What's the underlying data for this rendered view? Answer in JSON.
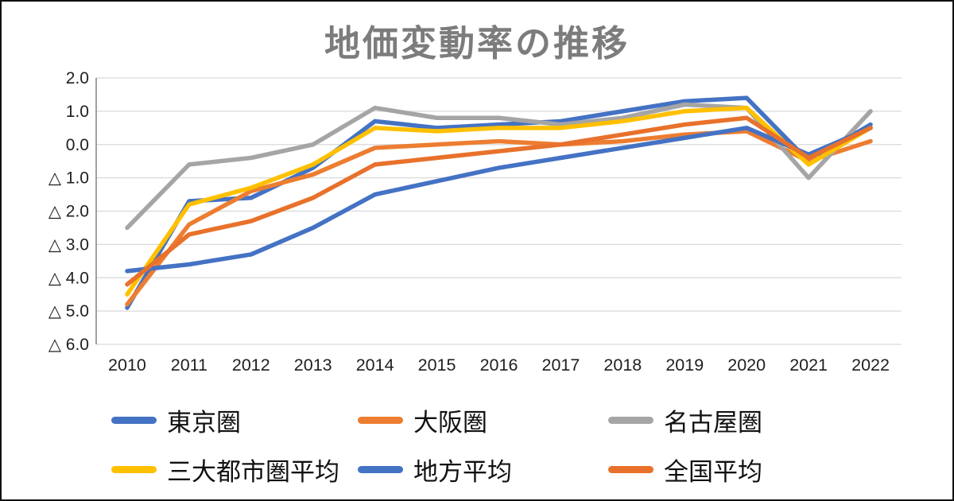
{
  "chart_data": {
    "type": "line",
    "title": "地価変動率の推移",
    "categories": [
      "2010",
      "2011",
      "2012",
      "2013",
      "2014",
      "2015",
      "2016",
      "2017",
      "2018",
      "2019",
      "2020",
      "2021",
      "2022"
    ],
    "series": [
      {
        "name": "東京圏",
        "color": "#4472C4",
        "values": [
          -4.9,
          -1.7,
          -1.6,
          -0.7,
          0.7,
          0.5,
          0.6,
          0.7,
          1.0,
          1.3,
          1.4,
          -0.5,
          0.6
        ]
      },
      {
        "name": "大阪圏",
        "color": "#ED7D31",
        "values": [
          -4.8,
          -2.4,
          -1.4,
          -0.9,
          -0.1,
          0.0,
          0.1,
          0.0,
          0.1,
          0.3,
          0.4,
          -0.5,
          0.1
        ]
      },
      {
        "name": "名古屋圏",
        "color": "#A5A5A5",
        "values": [
          -2.5,
          -0.6,
          -0.4,
          0.0,
          1.1,
          0.8,
          0.8,
          0.6,
          0.8,
          1.2,
          1.1,
          -1.0,
          1.0
        ]
      },
      {
        "name": "三大都市圏平均",
        "color": "#FFC000",
        "values": [
          -4.5,
          -1.8,
          -1.3,
          -0.6,
          0.5,
          0.4,
          0.5,
          0.5,
          0.7,
          1.0,
          1.1,
          -0.6,
          0.5
        ]
      },
      {
        "name": "地方平均",
        "color": "#4472C4",
        "values": [
          -3.8,
          -3.6,
          -3.3,
          -2.5,
          -1.5,
          -1.1,
          -0.7,
          -0.4,
          -0.1,
          0.2,
          0.5,
          -0.3,
          0.5
        ]
      },
      {
        "name": "全国平均",
        "color": "#E8712B",
        "values": [
          -4.2,
          -2.7,
          -2.3,
          -1.6,
          -0.6,
          -0.4,
          -0.2,
          0.0,
          0.3,
          0.6,
          0.8,
          -0.4,
          0.5
        ]
      }
    ],
    "ylim": [
      -6.0,
      2.0
    ],
    "ytick_step": 1.0,
    "ytick_labels": [
      "2.0",
      "1.0",
      "0.0",
      "△ 1.0",
      "△ 2.0",
      "△ 3.0",
      "△ 4.0",
      "△ 5.0",
      "△ 6.0"
    ],
    "xlabel": "",
    "ylabel": "",
    "grid": true,
    "legend_position": "bottom",
    "axis_color": "#808080",
    "gridline_color": "#D9D9D9"
  }
}
